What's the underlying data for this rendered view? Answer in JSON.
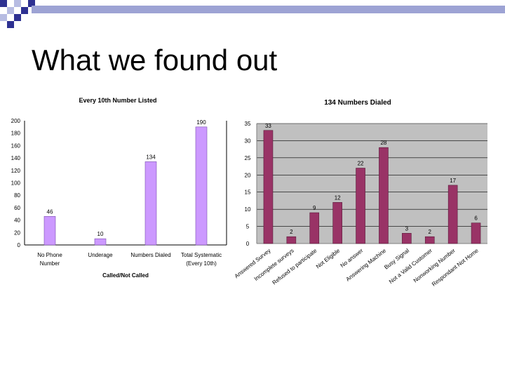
{
  "slide": {
    "title": "What we found out"
  },
  "colors": {
    "band": "#9da3d4",
    "corner_dark": "#2e3192",
    "corner_light": "#b7bce2",
    "bar_left": "#cc99ff",
    "bar_right": "#993366",
    "plot_bg": "#c0c0c0"
  },
  "chart_data": [
    {
      "type": "bar",
      "title": "Every 10th Number Listed",
      "xlabel": "Called/Not Called",
      "ylabel": "",
      "categories": [
        "No Phone Number",
        "Underage",
        "Numbers Dialed",
        "Total Systematic (Every 10th)"
      ],
      "values": [
        46,
        10,
        134,
        190
      ],
      "ylim": [
        0,
        200
      ],
      "ytick_step": 20,
      "data_labels": true,
      "grid": false
    },
    {
      "type": "bar",
      "title": "134 Numbers Dialed",
      "xlabel": "",
      "ylabel": "",
      "categories": [
        "Answered Survey",
        "Incomplete surveys",
        "Refused to participate",
        "Not Eligible",
        "No answer",
        "Answering Machine",
        "Busy Signal",
        "Not a Valid Customer",
        "Nonworking Number",
        "Respondant Not Home"
      ],
      "values": [
        33,
        2,
        9,
        12,
        22,
        28,
        3,
        2,
        17,
        6
      ],
      "ylim": [
        0,
        35
      ],
      "ytick_step": 5,
      "data_labels": true,
      "grid": true
    }
  ]
}
